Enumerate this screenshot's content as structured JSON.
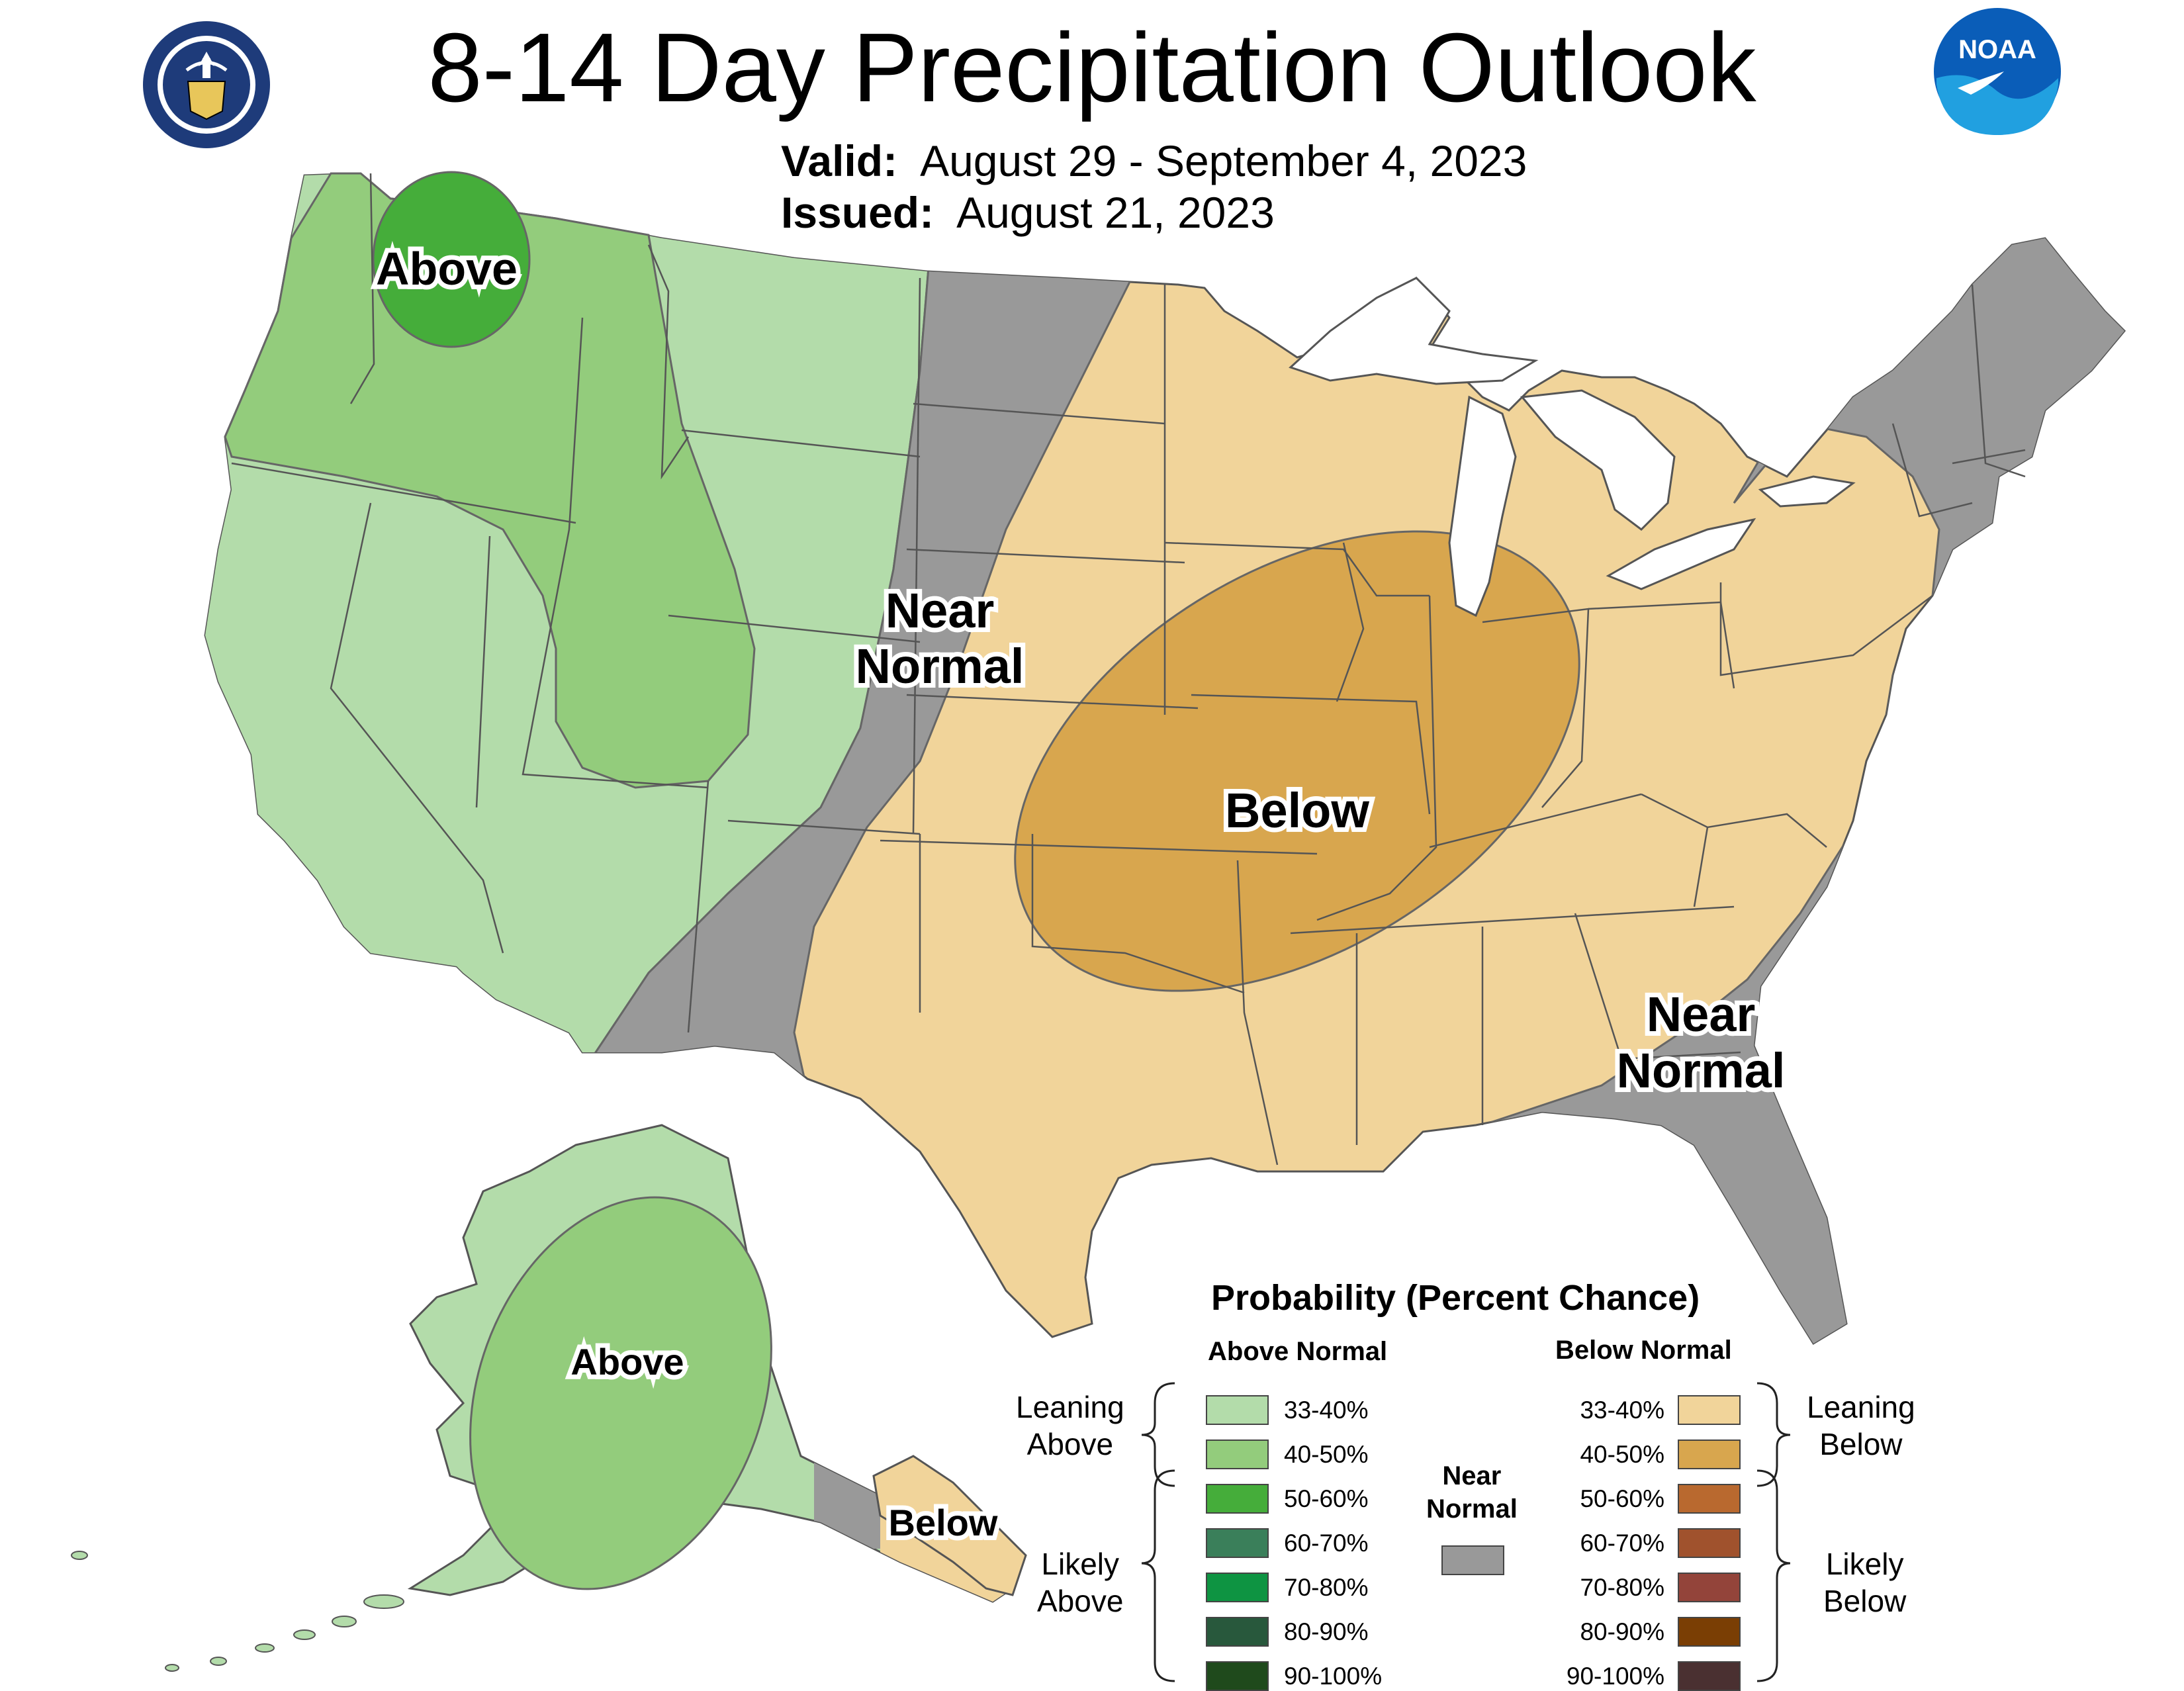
{
  "header": {
    "title": "8-14 Day Precipitation Outlook",
    "valid_label": "Valid:",
    "valid_value": "August 29 - September 4, 2023",
    "issued_label": "Issued:",
    "issued_value": "August 21, 2023"
  },
  "logos": {
    "left": {
      "name": "department-of-commerce-seal",
      "text": "DEPARTMENT OF COMMERCE · UNITED STATES OF AMERICA"
    },
    "right": {
      "name": "noaa-logo",
      "text": "NOAA"
    }
  },
  "map_labels": {
    "above_pnw": "Above",
    "near_normal_plains": [
      "Near",
      "Normal"
    ],
    "below_central": "Below",
    "near_normal_southeast": [
      "Near",
      "Normal"
    ],
    "above_alaska": "Above",
    "below_alaska": "Below"
  },
  "legend": {
    "title": "Probability (Percent Chance)",
    "above_heading": "Above Normal",
    "below_heading": "Below Normal",
    "near_normal_label": [
      "Near",
      "Normal"
    ],
    "near_normal_color": "#999999",
    "leaning_above": [
      "Leaning",
      "Above"
    ],
    "likely_above": [
      "Likely",
      "Above"
    ],
    "leaning_below": [
      "Leaning",
      "Below"
    ],
    "likely_below": [
      "Likely",
      "Below"
    ],
    "above_classes": [
      {
        "range": "33-40%",
        "color": "#b3dcaa"
      },
      {
        "range": "40-50%",
        "color": "#93cc7c"
      },
      {
        "range": "50-60%",
        "color": "#45ad3a"
      },
      {
        "range": "60-70%",
        "color": "#3a7f5a"
      },
      {
        "range": "70-80%",
        "color": "#0e9442"
      },
      {
        "range": "80-90%",
        "color": "#28583c"
      },
      {
        "range": "90-100%",
        "color": "#1f4a1c"
      }
    ],
    "below_classes": [
      {
        "range": "33-40%",
        "color": "#f1d49a"
      },
      {
        "range": "40-50%",
        "color": "#d8a64e"
      },
      {
        "range": "50-60%",
        "color": "#b9692f"
      },
      {
        "range": "60-70%",
        "color": "#a0522d"
      },
      {
        "range": "70-80%",
        "color": "#93443a"
      },
      {
        "range": "80-90%",
        "color": "#7a3e04"
      },
      {
        "range": "90-100%",
        "color": "#4a3031"
      }
    ]
  }
}
